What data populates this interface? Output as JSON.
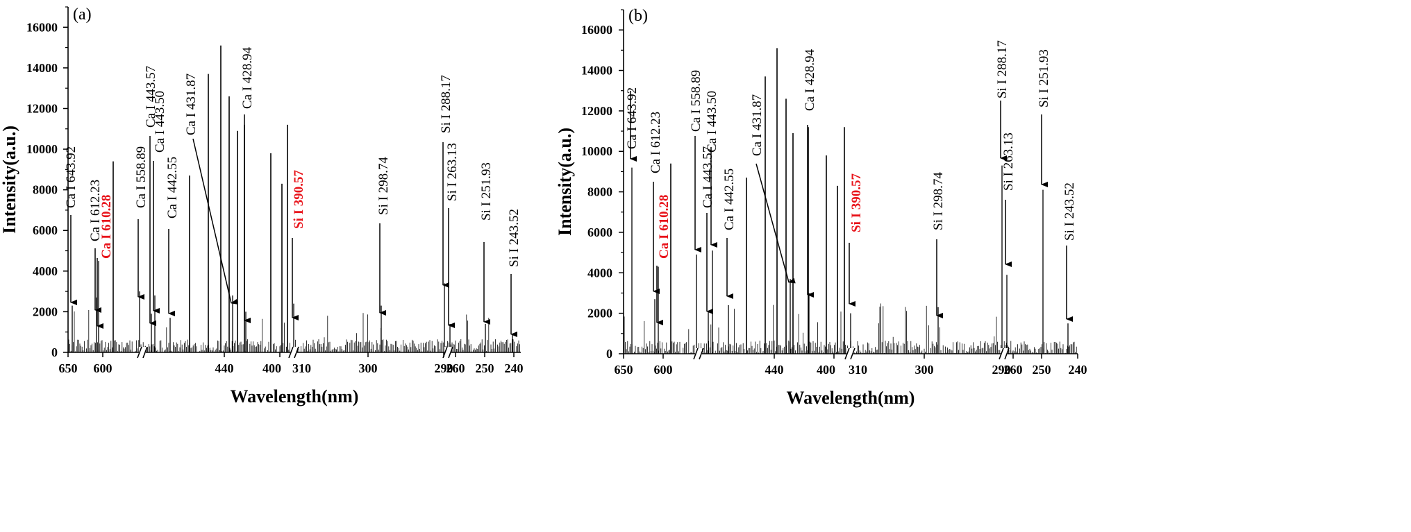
{
  "chart_data": [
    {
      "type": "line",
      "panel_label": "(a)",
      "xlabel": "Wavelength(nm)",
      "ylabel": "Intensity(a.u.)",
      "ylim": [
        0,
        17000
      ],
      "y_ticks": [
        0,
        2000,
        4000,
        6000,
        8000,
        10000,
        12000,
        14000,
        16000
      ],
      "x_tick_labels": [
        "650",
        "600",
        "440",
        "400",
        "310",
        "300",
        "290",
        "260",
        "250",
        "240"
      ],
      "x_axis_breaks": [
        "between 600 and 440",
        "between 400 and 310",
        "between 290 and 260"
      ],
      "grid": false,
      "legend": "none",
      "major_peaks_intensity": [
        9400,
        8700,
        13700,
        15100,
        12600,
        11200,
        10900,
        9800,
        8300,
        11200
      ],
      "annotations": [
        {
          "text": "Ca I 643.92",
          "color": "#000000",
          "bold": false,
          "peak_intensity": 2300
        },
        {
          "text": "Ca I 612.23",
          "color": "#000000",
          "bold": false,
          "peak_intensity": 2700
        },
        {
          "text": "Ca I 610.28",
          "color": "#e8141b",
          "bold": true,
          "peak_intensity": 4500
        },
        {
          "text": "Ca I 558.89",
          "color": "#000000",
          "bold": false,
          "peak_intensity": 3000
        },
        {
          "text": "Ca I 443.57",
          "color": "#000000",
          "bold": false,
          "peak_intensity": 1900
        },
        {
          "text": "Ca I 443.50",
          "color": "#000000",
          "bold": false,
          "peak_intensity": 2800
        },
        {
          "text": "Ca I 442.55",
          "color": "#000000",
          "bold": false,
          "peak_intensity": 1700
        },
        {
          "text": "Ca I 431.87",
          "color": "#000000",
          "bold": false,
          "peak_intensity": 2800
        },
        {
          "text": "Ca I 428.94",
          "color": "#000000",
          "bold": false,
          "peak_intensity": 2000
        },
        {
          "text": "Si I 390.57",
          "color": "#e8141b",
          "bold": true,
          "peak_intensity": 2400
        },
        {
          "text": "Si I 298.74",
          "color": "#000000",
          "bold": false,
          "peak_intensity": 2300
        },
        {
          "text": "Si I 288.17",
          "color": "#000000",
          "bold": false,
          "peak_intensity": 3400
        },
        {
          "text": "Si I 263.13",
          "color": "#000000",
          "bold": false,
          "peak_intensity": 1400
        },
        {
          "text": "Si I 251.93",
          "color": "#000000",
          "bold": false,
          "peak_intensity": 1400
        },
        {
          "text": "Si I 243.52",
          "color": "#000000",
          "bold": false,
          "peak_intensity": 900
        }
      ]
    },
    {
      "type": "line",
      "panel_label": "(b)",
      "xlabel": "Wavelength(nm)",
      "ylabel": "Intensity(a.u.)",
      "ylim": [
        0,
        17000
      ],
      "y_ticks": [
        0,
        2000,
        4000,
        6000,
        8000,
        10000,
        12000,
        14000,
        16000
      ],
      "x_tick_labels": [
        "650",
        "600",
        "440",
        "400",
        "310",
        "300",
        "290",
        "260",
        "250",
        "240"
      ],
      "x_axis_breaks": [
        "between 600 and 440",
        "between 400 and 310",
        "between 290 and 260"
      ],
      "grid": false,
      "legend": "none",
      "major_peaks_intensity": [
        9400,
        8700,
        13700,
        15100,
        12600,
        11200,
        10900,
        9800,
        8300,
        11200
      ],
      "annotations": [
        {
          "text": "Ca I 643.92",
          "color": "#000000",
          "bold": false,
          "peak_intensity": 9200
        },
        {
          "text": "Ca I 612.23",
          "color": "#000000",
          "bold": false,
          "peak_intensity": 2700
        },
        {
          "text": "Ca I 610.28",
          "color": "#e8141b",
          "bold": true,
          "peak_intensity": 4300
        },
        {
          "text": "Ca I 558.89",
          "color": "#000000",
          "bold": false,
          "peak_intensity": 4900
        },
        {
          "text": "Ca I 443.57",
          "color": "#000000",
          "bold": false,
          "peak_intensity": 2100
        },
        {
          "text": "Ca I 443.50",
          "color": "#000000",
          "bold": false,
          "peak_intensity": 5100
        },
        {
          "text": "Ca I 442.55",
          "color": "#000000",
          "bold": false,
          "peak_intensity": 2400
        },
        {
          "text": "Ca I 431.87",
          "color": "#000000",
          "bold": false,
          "peak_intensity": 3700
        },
        {
          "text": "Ca I 428.94",
          "color": "#000000",
          "bold": false,
          "peak_intensity": 3000
        },
        {
          "text": "Si I 390.57",
          "color": "#e8141b",
          "bold": true,
          "peak_intensity": 2000
        },
        {
          "text": "Si I 298.74",
          "color": "#000000",
          "bold": false,
          "peak_intensity": 2300
        },
        {
          "text": "Si I 288.17",
          "color": "#000000",
          "bold": false,
          "peak_intensity": 9300
        },
        {
          "text": "Si I 263.13",
          "color": "#000000",
          "bold": false,
          "peak_intensity": 3900
        },
        {
          "text": "Si I 251.93",
          "color": "#000000",
          "bold": false,
          "peak_intensity": 8100
        },
        {
          "text": "Si I 243.52",
          "color": "#000000",
          "bold": false,
          "peak_intensity": 1500
        }
      ]
    }
  ]
}
